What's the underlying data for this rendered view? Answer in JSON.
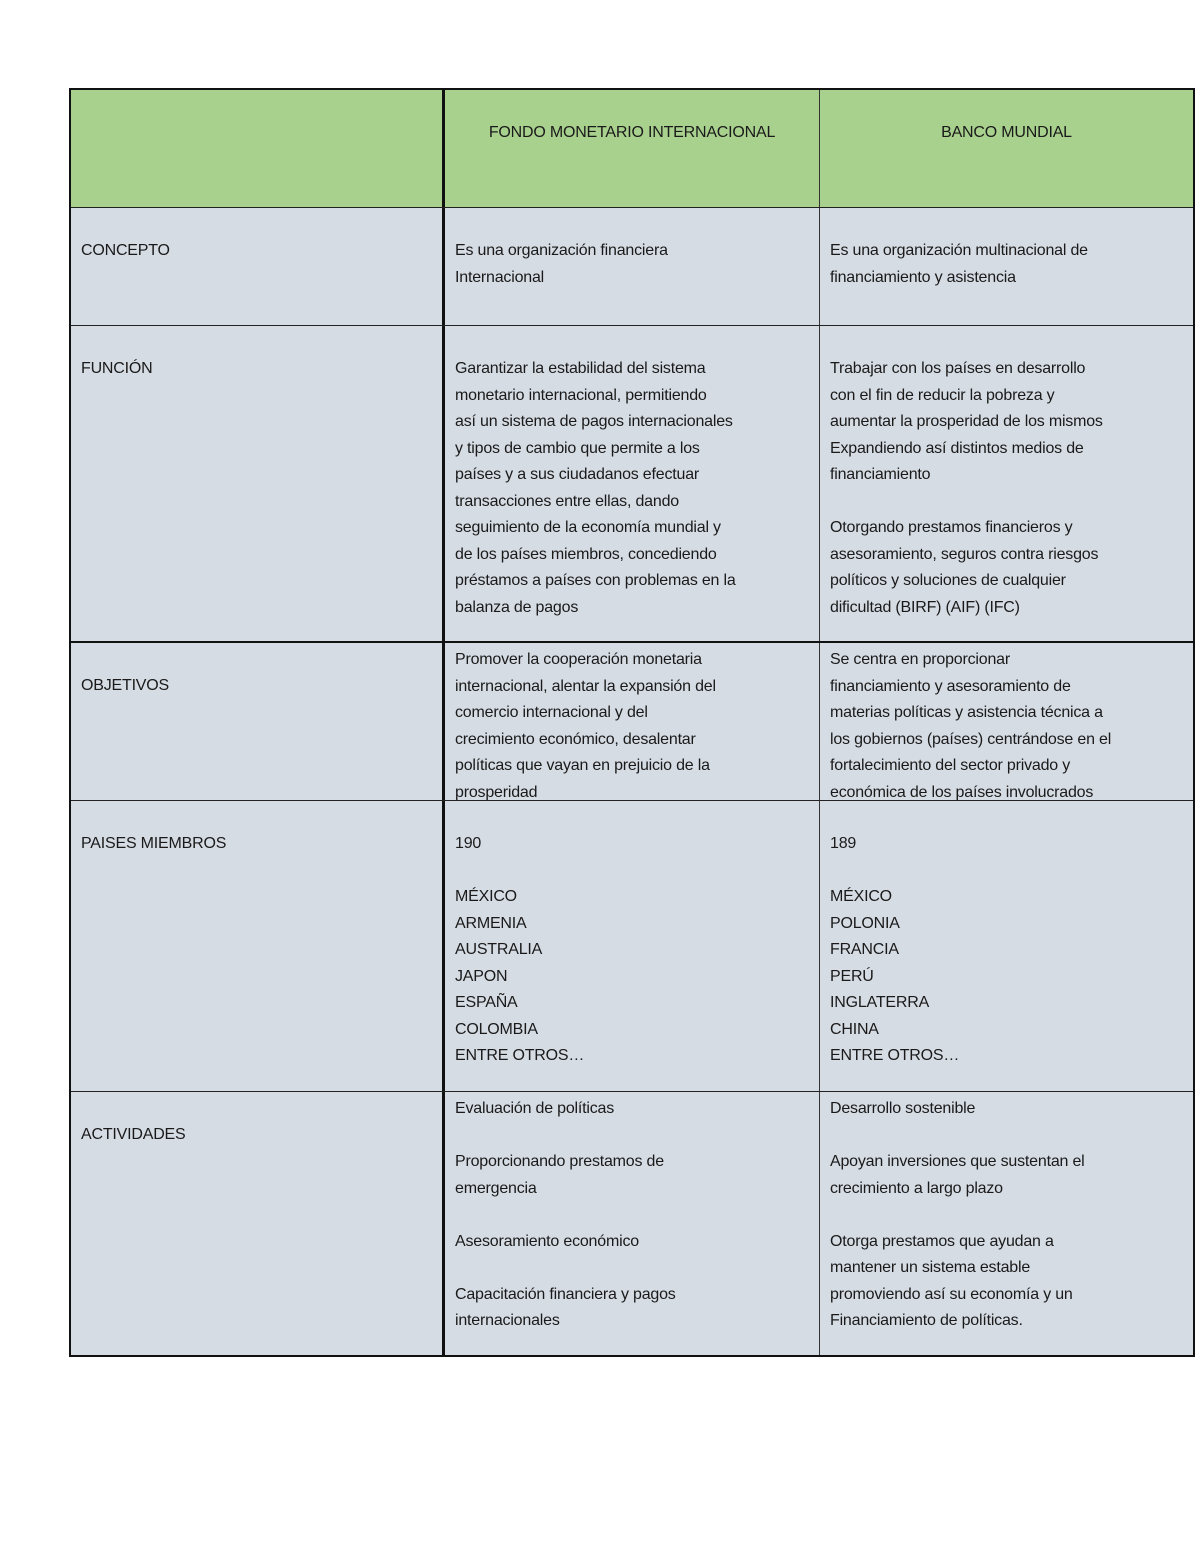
{
  "header": {
    "col1": "",
    "col2": "FONDO MONETARIO INTERNACIONAL",
    "col3": "BANCO MUNDIAL"
  },
  "colors": {
    "header_bg": "#a9d18e",
    "body_bg": "#d6dce4"
  },
  "rows": [
    {
      "label": "CONCEPTO",
      "fmi": "Es una organización financiera\nInternacional",
      "bm": "Es una organización multinacional de\nfinanciamiento y asistencia"
    },
    {
      "label": "FUNCIÓN",
      "fmi": "Garantizar la estabilidad del sistema\nmonetario internacional, permitiendo\nasí un sistema de pagos internacionales\ny tipos de cambio que permite a los\npaíses y a sus ciudadanos efectuar\ntransacciones entre ellas, dando\nseguimiento de la economía mundial y\nde los países miembros, concediendo\npréstamos a países con problemas en la\nbalanza de pagos",
      "bm": "Trabajar con los países en desarrollo\ncon el fin de reducir la pobreza y\naumentar la prosperidad de los mismos\nExpandiendo así distintos medios de\nfinanciamiento\n\nOtorgando prestamos financieros y\nasesoramiento, seguros contra riesgos\npolíticos y soluciones de cualquier\ndificultad (BIRF) (AIF) (IFC)"
    },
    {
      "label": "OBJETIVOS",
      "fmi": "Promover la cooperación monetaria\ninternacional, alentar la expansión del\ncomercio internacional y del\ncrecimiento económico, desalentar\npolíticas que vayan en prejuicio de la\nprosperidad",
      "bm": "Se centra en proporcionar\nfinanciamiento y asesoramiento de\nmaterias políticas y asistencia técnica a\nlos gobiernos (países) centrándose en el\nfortalecimiento del sector privado y\neconómica de los países involucrados"
    },
    {
      "label": "PAISES MIEMBROS",
      "fmi": "190\n\nMÉXICO\nARMENIA\nAUSTRALIA\nJAPON\nESPAÑA\nCOLOMBIA\nENTRE OTROS…",
      "bm": "189\n\nMÉXICO\nPOLONIA\nFRANCIA\nPERÚ\nINGLATERRA\nCHINA\nENTRE OTROS…"
    },
    {
      "label": "ACTIVIDADES",
      "fmi": "Evaluación de políticas\n\nProporcionando prestamos de\nemergencia\n\nAsesoramiento económico\n\nCapacitación financiera y pagos\ninternacionales",
      "bm": "Desarrollo sostenible\n\nApoyan inversiones que sustentan el\ncrecimiento a largo plazo\n\nOtorga prestamos que ayudan a\nmantener un sistema estable\npromoviendo así su economía y un\nFinanciamiento de políticas."
    }
  ]
}
